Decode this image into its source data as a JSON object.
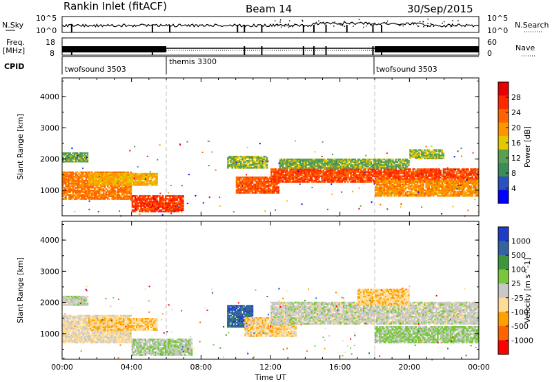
{
  "header": {
    "station": "Rankin Inlet (fitACF)",
    "beam": "Beam 14",
    "date": "30/Sep/2015"
  },
  "noise_panel": {
    "left_label": "N.Sky",
    "right_label": "N.Search",
    "left_ticks": [
      "10^5",
      "10^0"
    ],
    "right_ticks": [
      "10^5",
      "10^0"
    ]
  },
  "freq_panel": {
    "left_label_1": "Freq.",
    "left_label_2": "[MHz]",
    "right_label": "Nave",
    "left_ticks": [
      "18",
      "8"
    ],
    "right_ticks": [
      "60",
      "0"
    ]
  },
  "cpid_panel": {
    "label": "CPID",
    "modes": [
      {
        "name": "twofsound 3503",
        "start_hour": 0,
        "end_hour": 6
      },
      {
        "name": "themis 3300",
        "start_hour": 6,
        "end_hour": 18
      },
      {
        "name": "twofsound 3503",
        "start_hour": 18,
        "end_hour": 24
      }
    ]
  },
  "colors": {
    "power": [
      "#0000ff",
      "#2a52be",
      "#3c8c5a",
      "#5aa050",
      "#e6c800",
      "#ff9600",
      "#ff6400",
      "#ff2800",
      "#e60000"
    ],
    "velocity": [
      "#1e3cc8",
      "#3264a0",
      "#3c963c",
      "#78c83c",
      "#c8c8c8",
      "#ffdc96",
      "#ffa000",
      "#ff6400",
      "#ff0000"
    ]
  },
  "chart_data": [
    {
      "type": "heatmap",
      "title": "",
      "ylabel": "Slant Range [km]",
      "xlabel": "",
      "xlim": [
        0,
        24
      ],
      "ylim": [
        180,
        4600
      ],
      "yticks": [
        "1000",
        "2000",
        "3000",
        "4000"
      ],
      "colorbar": {
        "label": "Power [dB]",
        "ticks": [
          "4",
          "8",
          "12",
          "16",
          "20",
          "24",
          "28"
        ],
        "range": [
          0,
          32
        ]
      },
      "bands": [
        {
          "t0": 0.0,
          "t1": 4.0,
          "r0": 700,
          "r1": 1600,
          "value": 22
        },
        {
          "t0": 0.0,
          "t1": 1.5,
          "r0": 1900,
          "r1": 2200,
          "value": 12
        },
        {
          "t0": 1.5,
          "t1": 5.5,
          "r0": 1150,
          "r1": 1550,
          "value": 18
        },
        {
          "t0": 4.0,
          "t1": 7.0,
          "r0": 300,
          "r1": 800,
          "value": 26
        },
        {
          "t0": 9.5,
          "t1": 11.8,
          "r0": 1700,
          "r1": 2100,
          "value": 14
        },
        {
          "t0": 10.0,
          "t1": 12.5,
          "r0": 900,
          "r1": 1400,
          "value": 24
        },
        {
          "t0": 12.0,
          "t1": 24.0,
          "r0": 1250,
          "r1": 1700,
          "value": 25
        },
        {
          "t0": 12.5,
          "t1": 20.0,
          "r0": 1700,
          "r1": 2000,
          "value": 13
        },
        {
          "t0": 18.0,
          "t1": 24.0,
          "r0": 800,
          "r1": 1300,
          "value": 20
        },
        {
          "t0": 20.0,
          "t1": 22.0,
          "r0": 2000,
          "r1": 2300,
          "value": 14
        }
      ]
    },
    {
      "type": "heatmap",
      "title": "",
      "ylabel": "Slant Range [km]",
      "xlabel": "Time UT",
      "xlim": [
        0,
        24
      ],
      "ylim": [
        180,
        4600
      ],
      "xticks": [
        "00:00",
        "04:00",
        "08:00",
        "12:00",
        "16:00",
        "20:00",
        "00:00"
      ],
      "yticks": [
        "1000",
        "2000",
        "3000",
        "4000"
      ],
      "colorbar": {
        "label": "Velocity [m s^-1]",
        "ticks": [
          "1000",
          "500",
          "100",
          "25",
          "-25",
          "-100",
          "-500",
          "-1000"
        ],
        "range": [
          -1000,
          1000
        ]
      },
      "bands": [
        {
          "t0": 0.0,
          "t1": 4.0,
          "r0": 700,
          "r1": 1600,
          "value": -150
        },
        {
          "t0": 0.0,
          "t1": 1.5,
          "r0": 1900,
          "r1": 2200,
          "value": 0
        },
        {
          "t0": 1.5,
          "t1": 5.5,
          "r0": 1100,
          "r1": 1500,
          "value": -300
        },
        {
          "t0": 4.0,
          "t1": 7.5,
          "r0": 300,
          "r1": 800,
          "value": 80
        },
        {
          "t0": 9.5,
          "t1": 11.0,
          "r0": 1200,
          "r1": 1900,
          "value": 700
        },
        {
          "t0": 10.5,
          "t1": 13.5,
          "r0": 900,
          "r1": 1500,
          "value": -250
        },
        {
          "t0": 12.0,
          "t1": 24.0,
          "r0": 1300,
          "r1": 2000,
          "value": 0
        },
        {
          "t0": 18.0,
          "t1": 24.0,
          "r0": 700,
          "r1": 1200,
          "value": 150
        },
        {
          "t0": 17.0,
          "t1": 20.0,
          "r0": 1900,
          "r1": 2400,
          "value": -300
        }
      ]
    }
  ]
}
